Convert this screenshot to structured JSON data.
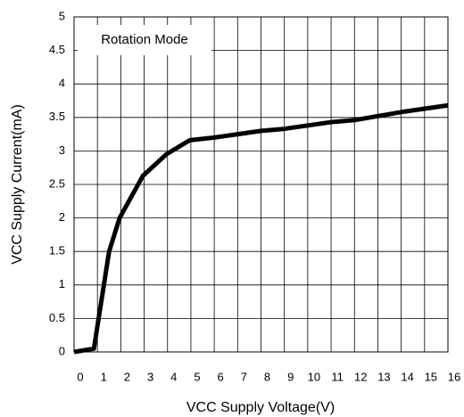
{
  "chart_data": {
    "type": "line",
    "xlabel": "VCC Supply Voltage(V)",
    "ylabel": "VCC Supply Current(mA)",
    "annotation": "Rotation Mode",
    "x": [
      0,
      0.85,
      1.5,
      1.95,
      2.95,
      3.95,
      4.95,
      6,
      7,
      8,
      9,
      10,
      11,
      12,
      13,
      14,
      15,
      16
    ],
    "series": [
      {
        "name": "VCC Supply Current",
        "color": "#000000",
        "values": [
          0,
          0.05,
          1.5,
          2.0,
          2.63,
          2.95,
          3.16,
          3.2,
          3.25,
          3.3,
          3.33,
          3.38,
          3.43,
          3.46,
          3.52,
          3.58,
          3.63,
          3.68
        ]
      }
    ],
    "xlim": [
      0,
      16
    ],
    "xticks": [
      0,
      1,
      2,
      3,
      4,
      5,
      6,
      7,
      8,
      9,
      10,
      11,
      12,
      13,
      14,
      15,
      16
    ],
    "ylim": [
      0,
      5
    ],
    "yticks": [
      0,
      0.5,
      1,
      1.5,
      2,
      2.5,
      3,
      3.5,
      4,
      4.5,
      5
    ],
    "grid": true
  }
}
